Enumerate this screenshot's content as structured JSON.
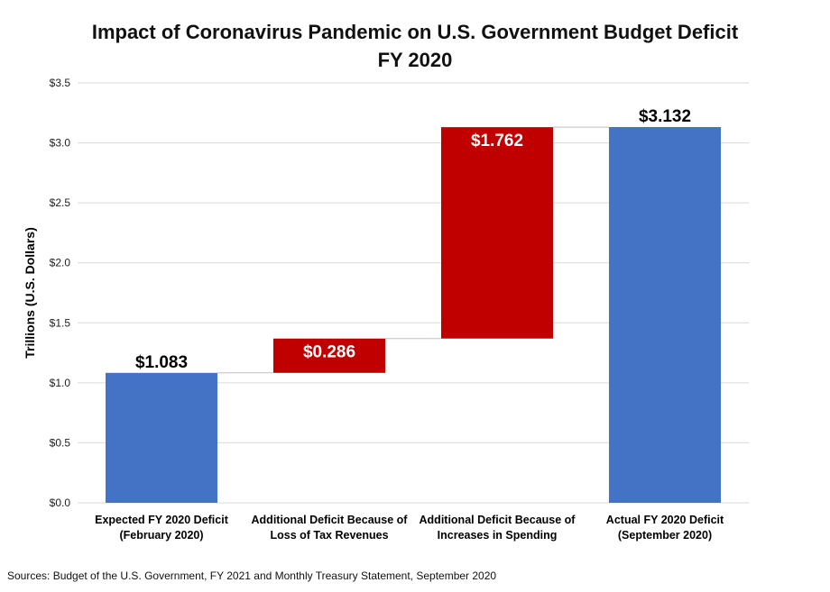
{
  "chart_data": {
    "type": "bar",
    "subtype": "waterfall",
    "title": "Impact of Coronavirus Pandemic on U.S. Government Budget Deficit",
    "subtitle": "FY 2020",
    "ylabel": "Trillions (U.S. Dollars)",
    "xlabel": "",
    "ylim": [
      0,
      3.5
    ],
    "yticks": [
      "$0.0",
      "$0.5",
      "$1.0",
      "$1.5",
      "$2.0",
      "$2.5",
      "$3.0",
      "$3.5"
    ],
    "ytick_values": [
      0,
      0.5,
      1.0,
      1.5,
      2.0,
      2.5,
      3.0,
      3.5
    ],
    "grid": true,
    "categories": [
      [
        "Expected FY 2020 Deficit",
        "(February 2020)"
      ],
      [
        "Additional Deficit Because of",
        "Loss of Tax Revenues"
      ],
      [
        "Additional Deficit Because of",
        "Increases in Spending"
      ],
      [
        "Actual FY 2020 Deficit",
        "(September 2020)"
      ]
    ],
    "bars": [
      {
        "start": 0,
        "end": 1.083,
        "value": 1.083,
        "label": "$1.083",
        "kind": "total"
      },
      {
        "start": 1.083,
        "end": 1.369,
        "value": 0.286,
        "label": "$0.286",
        "kind": "increase"
      },
      {
        "start": 1.369,
        "end": 3.131,
        "value": 1.762,
        "label": "$1.762",
        "kind": "increase"
      },
      {
        "start": 0,
        "end": 3.132,
        "value": 3.132,
        "label": "$3.132",
        "kind": "total"
      }
    ],
    "colors": {
      "total": "#4472C4",
      "increase": "#C00000",
      "grid": "#D9D9D9"
    }
  },
  "source": "Sources: Budget of the U.S. Government, FY 2021 and Monthly Treasury Statement, September 2020"
}
